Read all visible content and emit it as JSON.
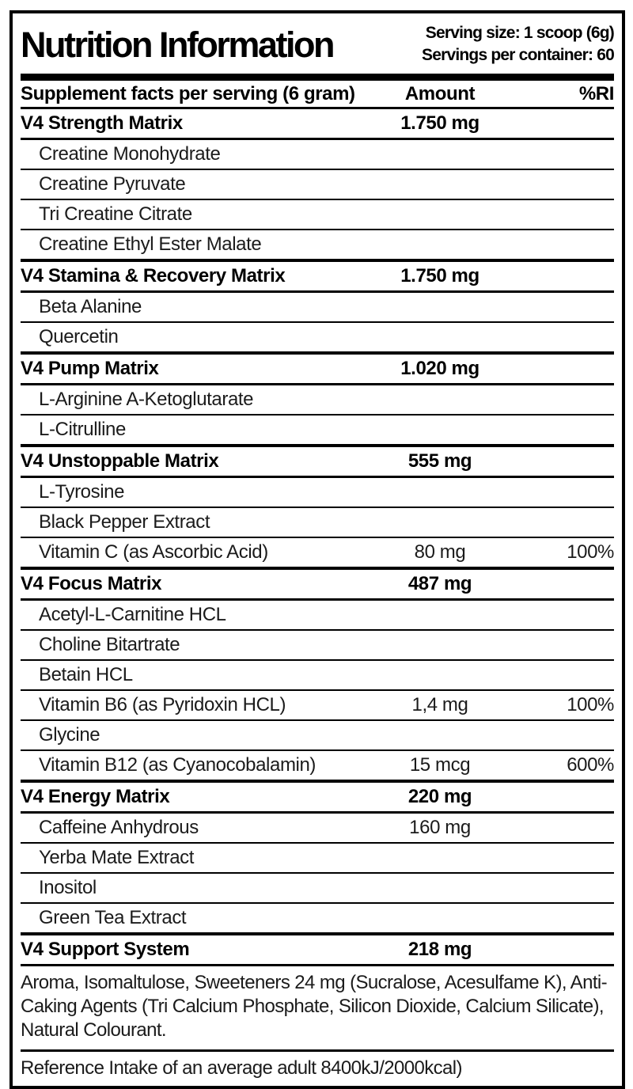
{
  "header": {
    "title": "Nutrition Information",
    "serving_size": "Serving size: 1 scoop (6g)",
    "servings_per_container": "Servings per container: 60"
  },
  "columns": {
    "name": "Supplement facts per serving (6 gram)",
    "amount": "Amount",
    "ri": "%RI"
  },
  "sections": [
    {
      "title": "V4 Strength Matrix",
      "amount": "1.750 mg",
      "ri": "",
      "items": [
        {
          "name": "Creatine Monohydrate",
          "amount": "",
          "ri": ""
        },
        {
          "name": "Creatine Pyruvate",
          "amount": "",
          "ri": ""
        },
        {
          "name": "Tri Creatine Citrate",
          "amount": "",
          "ri": ""
        },
        {
          "name": "Creatine Ethyl Ester Malate",
          "amount": "",
          "ri": ""
        }
      ]
    },
    {
      "title": "V4 Stamina & Recovery Matrix",
      "amount": "1.750 mg",
      "ri": "",
      "items": [
        {
          "name": "Beta Alanine",
          "amount": "",
          "ri": ""
        },
        {
          "name": "Quercetin",
          "amount": "",
          "ri": ""
        }
      ]
    },
    {
      "title": "V4 Pump Matrix",
      "amount": "1.020 mg",
      "ri": "",
      "items": [
        {
          "name": "L-Arginine A-Ketoglutarate",
          "amount": "",
          "ri": ""
        },
        {
          "name": "L-Citrulline",
          "amount": "",
          "ri": ""
        }
      ]
    },
    {
      "title": "V4 Unstoppable Matrix",
      "amount": "555 mg",
      "ri": "",
      "items": [
        {
          "name": "L-Tyrosine",
          "amount": "",
          "ri": ""
        },
        {
          "name": "Black Pepper Extract",
          "amount": "",
          "ri": ""
        },
        {
          "name": "Vitamin C (as Ascorbic Acid)",
          "amount": "80 mg",
          "ri": "100%"
        }
      ]
    },
    {
      "title": "V4 Focus Matrix",
      "amount": "487 mg",
      "ri": "",
      "items": [
        {
          "name": "Acetyl-L-Carnitine HCL",
          "amount": "",
          "ri": ""
        },
        {
          "name": "Choline Bitartrate",
          "amount": "",
          "ri": ""
        },
        {
          "name": "Betain HCL",
          "amount": "",
          "ri": ""
        },
        {
          "name": "Vitamin B6 (as Pyridoxin HCL)",
          "amount": "1,4 mg",
          "ri": "100%"
        },
        {
          "name": "Glycine",
          "amount": "",
          "ri": ""
        },
        {
          "name": "Vitamin B12 (as Cyanocobalamin)",
          "amount": "15 mcg",
          "ri": "600%"
        }
      ]
    },
    {
      "title": "V4 Energy Matrix",
      "amount": "220 mg",
      "ri": "",
      "items": [
        {
          "name": "Caffeine Anhydrous",
          "amount": "160 mg",
          "ri": ""
        },
        {
          "name": "Yerba Mate Extract",
          "amount": "",
          "ri": ""
        },
        {
          "name": "Inositol",
          "amount": "",
          "ri": ""
        },
        {
          "name": "Green Tea Extract",
          "amount": "",
          "ri": ""
        }
      ]
    },
    {
      "title": "V4 Support System",
      "amount": "218 mg",
      "ri": "",
      "items": []
    }
  ],
  "footnotes": {
    "ingredients": "Aroma, Isomaltulose, Sweeteners 24 mg (Sucralose, Acesulfame K), Anti-Caking Agents (Tri Calcium Phosphate, Silicon Dioxide, Calcium Silicate), Natural Colourant.",
    "reference": "Reference Intake of an average adult 8400kJ/2000kcal)"
  }
}
